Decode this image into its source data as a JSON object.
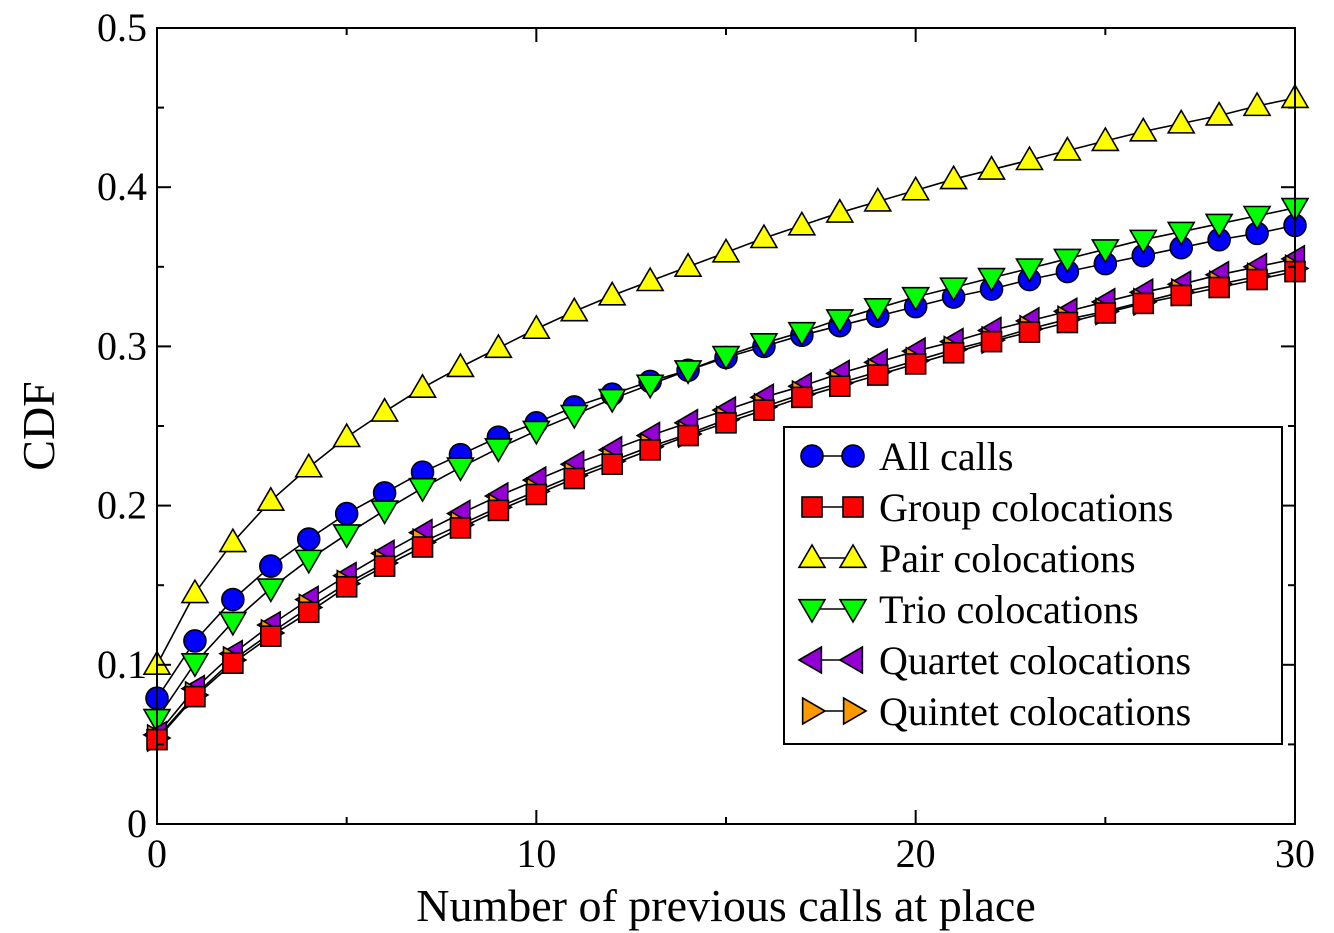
{
  "chart_data": {
    "type": "line",
    "xlabel": "Number of previous calls at place",
    "ylabel": "CDF",
    "xlim": [
      0,
      30
    ],
    "ylim": [
      0,
      0.5
    ],
    "x_ticks": [
      "0",
      "10",
      "20",
      "30"
    ],
    "y_ticks": [
      "0",
      "0.1",
      "0.2",
      "0.3",
      "0.4",
      "0.5"
    ],
    "grid": false,
    "legend_position": "bottom-right",
    "x": [
      0,
      1,
      2,
      3,
      4,
      5,
      6,
      7,
      8,
      9,
      10,
      11,
      12,
      13,
      14,
      15,
      16,
      17,
      18,
      19,
      20,
      21,
      22,
      23,
      24,
      25,
      26,
      27,
      28,
      29,
      30
    ],
    "series": [
      {
        "name": "All calls",
        "marker": "circle",
        "color": "#0000ff",
        "values": [
          0.079,
          0.115,
          0.141,
          0.162,
          0.179,
          0.195,
          0.208,
          0.221,
          0.232,
          0.243,
          0.252,
          0.262,
          0.27,
          0.278,
          0.285,
          0.293,
          0.3,
          0.307,
          0.313,
          0.319,
          0.325,
          0.331,
          0.336,
          0.342,
          0.347,
          0.352,
          0.357,
          0.362,
          0.367,
          0.371,
          0.376
        ]
      },
      {
        "name": "Group colocations",
        "marker": "square",
        "color": "#ff0000",
        "values": [
          0.053,
          0.08,
          0.101,
          0.118,
          0.133,
          0.149,
          0.162,
          0.174,
          0.186,
          0.197,
          0.207,
          0.217,
          0.226,
          0.235,
          0.244,
          0.252,
          0.26,
          0.268,
          0.275,
          0.282,
          0.289,
          0.296,
          0.303,
          0.309,
          0.315,
          0.321,
          0.327,
          0.332,
          0.337,
          0.342,
          0.347
        ]
      },
      {
        "name": "Pair colocations",
        "marker": "triangle-up",
        "color": "#ffff00",
        "values": [
          0.1,
          0.145,
          0.177,
          0.203,
          0.224,
          0.243,
          0.259,
          0.274,
          0.287,
          0.299,
          0.311,
          0.322,
          0.332,
          0.341,
          0.35,
          0.359,
          0.368,
          0.376,
          0.384,
          0.391,
          0.398,
          0.405,
          0.411,
          0.417,
          0.423,
          0.429,
          0.435,
          0.44,
          0.445,
          0.451,
          0.456
        ]
      },
      {
        "name": "Trio colocations",
        "marker": "triangle-down",
        "color": "#00ff00",
        "values": [
          0.066,
          0.101,
          0.127,
          0.148,
          0.166,
          0.182,
          0.197,
          0.211,
          0.224,
          0.236,
          0.247,
          0.257,
          0.267,
          0.276,
          0.285,
          0.294,
          0.302,
          0.309,
          0.317,
          0.324,
          0.331,
          0.337,
          0.343,
          0.349,
          0.355,
          0.361,
          0.367,
          0.372,
          0.377,
          0.382,
          0.387
        ]
      },
      {
        "name": "Quartet colocations",
        "marker": "triangle-left",
        "color": "#9400d3",
        "values": [
          0.056,
          0.085,
          0.107,
          0.125,
          0.141,
          0.156,
          0.17,
          0.183,
          0.195,
          0.206,
          0.216,
          0.226,
          0.235,
          0.244,
          0.252,
          0.26,
          0.268,
          0.275,
          0.283,
          0.29,
          0.297,
          0.303,
          0.31,
          0.316,
          0.322,
          0.328,
          0.334,
          0.339,
          0.345,
          0.35,
          0.355
        ]
      },
      {
        "name": "Quintet colocations",
        "marker": "triangle-right",
        "color": "#ff9900",
        "values": [
          0.054,
          0.081,
          0.103,
          0.12,
          0.136,
          0.151,
          0.164,
          0.177,
          0.188,
          0.199,
          0.209,
          0.219,
          0.228,
          0.237,
          0.245,
          0.254,
          0.262,
          0.27,
          0.277,
          0.284,
          0.291,
          0.298,
          0.304,
          0.311,
          0.317,
          0.322,
          0.328,
          0.334,
          0.339,
          0.344,
          0.349
        ]
      }
    ]
  }
}
